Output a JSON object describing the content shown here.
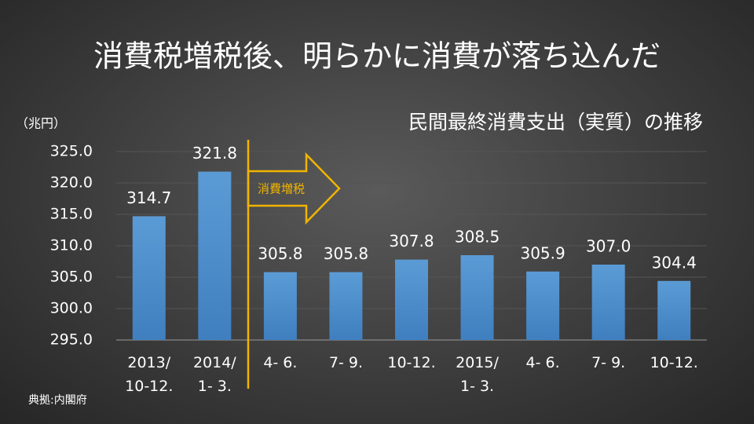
{
  "chart_data": {
    "type": "bar",
    "title": "消費税増税後、明らかに消費が落ち込んだ",
    "subtitle": "民間最終消費支出（実質）の推移",
    "unit_label": "（兆円）",
    "source": "典拠:内閣府",
    "annotation": "消費増税",
    "categories": [
      "2013/\n10-12.",
      "2014/\n1- 3.",
      "4- 6.",
      "7- 9.",
      "10-12.",
      "2015/\n1- 3.",
      "4- 6.",
      "7- 9.",
      "10-12."
    ],
    "values": [
      314.7,
      321.8,
      305.8,
      305.8,
      307.8,
      308.5,
      305.9,
      307.0,
      304.4
    ],
    "value_labels": [
      "314.7",
      "321.8",
      "305.8",
      "305.8",
      "307.8",
      "308.5",
      "305.9",
      "307.0",
      "304.4"
    ],
    "color": "#5b9bd5",
    "ylim": [
      295,
      325
    ],
    "yticks": [
      {
        "value": 295,
        "label": "295.0"
      },
      {
        "value": 300,
        "label": "300.0"
      },
      {
        "value": 305,
        "label": "305.0"
      },
      {
        "value": 310,
        "label": "310.0"
      },
      {
        "value": 315,
        "label": "315.0"
      },
      {
        "value": 320,
        "label": "320.0"
      },
      {
        "value": 325,
        "label": "325.0"
      }
    ],
    "grid": true
  }
}
